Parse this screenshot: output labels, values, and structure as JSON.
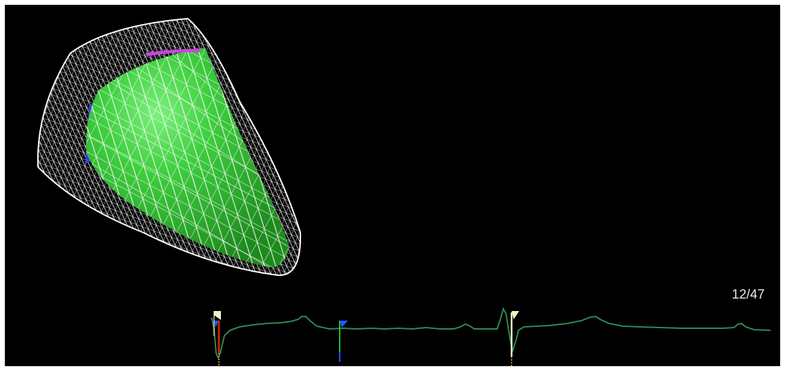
{
  "viewer": {
    "frame_counter": "12/47",
    "current_frame": 12,
    "total_frames": 47
  },
  "colors": {
    "background": "#000000",
    "endocardium": "#33c233",
    "epicardium_wire": "#ffffff",
    "ecg_trace": "#2e8b57",
    "marker_blue": "#1e5bff",
    "marker_cream": "#f0f5c8",
    "marker_red": "#cc2200",
    "marker_green": "#21c12b",
    "valve_ring": "#cc44dd",
    "septal_patch": "#3a3aff"
  },
  "icons": {
    "start_marker": "flag-cream-icon",
    "mid_marker": "flag-blue-icon",
    "end_marker": "flag-cream-icon"
  }
}
